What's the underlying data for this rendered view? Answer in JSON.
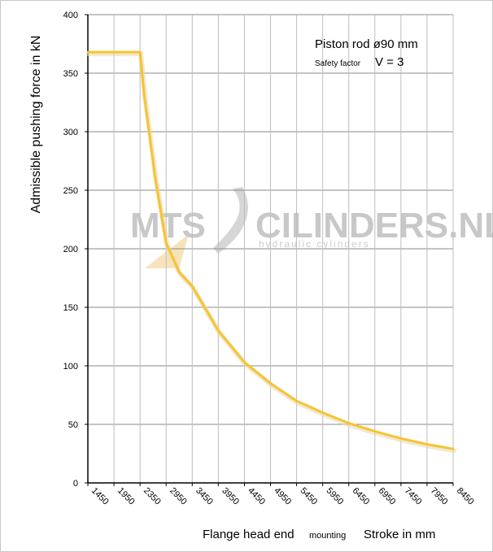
{
  "chart_data": {
    "type": "line",
    "ylabel": "Admissible pushing force in kN",
    "xlabel_main": "Flange head end",
    "xlabel_small": "mounting",
    "xlabel_right": "Stroke in mm",
    "annotation_line1": "Piston rod ø90 mm",
    "annotation_line2_small": "Safety factor",
    "annotation_line2": "V = 3",
    "ylim": [
      0,
      400
    ],
    "yticks": [
      0,
      50,
      100,
      150,
      200,
      250,
      300,
      350,
      400
    ],
    "xlim": [
      1450,
      8450
    ],
    "xticks": [
      1450,
      1950,
      2350,
      2950,
      3450,
      3950,
      4450,
      4950,
      5450,
      5950,
      6450,
      6950,
      7450,
      7950,
      8450
    ],
    "grid": true,
    "line_color": "#F5C431",
    "series": [
      {
        "x": [
          1450,
          1950,
          2350,
          2450,
          2700,
          2950,
          3200,
          3450,
          3950,
          4450,
          4950,
          5450,
          5950,
          6450,
          6950,
          7450,
          7950,
          8450
        ],
        "values": [
          368,
          368,
          368,
          330,
          260,
          205,
          180,
          168,
          130,
          103,
          85,
          70,
          60,
          51,
          44,
          38,
          33,
          29
        ]
      }
    ]
  },
  "watermark": {
    "text_left": "MTS",
    "text_right": "CILINDERS.NL",
    "subtitle": "hydraulic cylinders"
  }
}
